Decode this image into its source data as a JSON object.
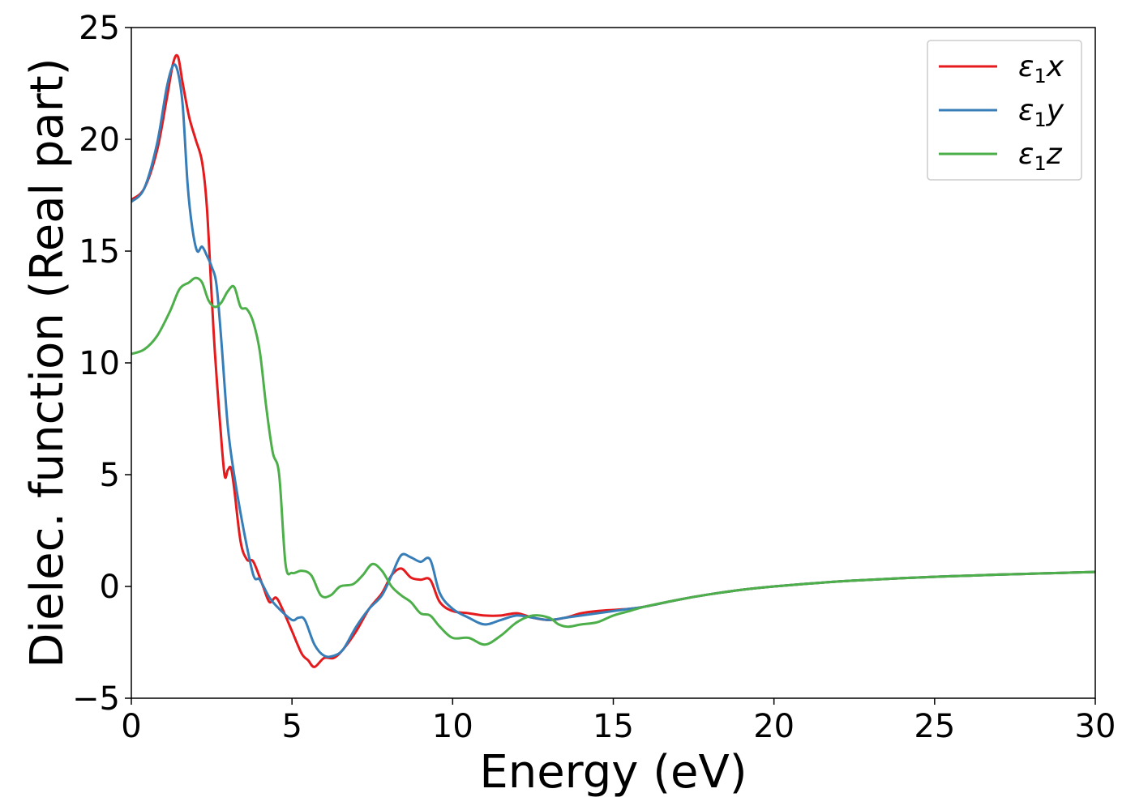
{
  "chart_data": {
    "type": "line",
    "xlabel": "Energy (eV)",
    "ylabel": "Dielec. function (Real part)",
    "xlim": [
      0,
      30
    ],
    "ylim": [
      -5,
      25
    ],
    "xticks": [
      0,
      5,
      10,
      15,
      20,
      25,
      30
    ],
    "yticks": [
      -5,
      0,
      5,
      10,
      15,
      20,
      25
    ],
    "grid": false,
    "legend_position": "top-right",
    "series": [
      {
        "name": "ε1x",
        "legend": {
          "main": "ε",
          "sub": "1",
          "tail": "x"
        },
        "color": "#e41a1c",
        "x": [
          0,
          0.4,
          0.8,
          1.1,
          1.3,
          1.45,
          1.6,
          1.8,
          2.0,
          2.2,
          2.35,
          2.5,
          2.6,
          2.75,
          2.9,
          3.0,
          3.1,
          3.2,
          3.4,
          3.6,
          3.8,
          4.1,
          4.3,
          4.5,
          4.7,
          5.0,
          5.3,
          5.5,
          5.7,
          6.0,
          6.3,
          6.6,
          7.0,
          7.4,
          7.8,
          8.1,
          8.4,
          8.7,
          9.0,
          9.3,
          9.6,
          10.0,
          10.5,
          11.0,
          11.5,
          12.0,
          12.5,
          13.0,
          13.5,
          14.0,
          14.5,
          15.0,
          15.5,
          16.0,
          17.0,
          18.0,
          19.0,
          20.0,
          21.0,
          22.0,
          23.0,
          24.0,
          25.0,
          26.0,
          27.0,
          28.0,
          29.0,
          30.0
        ],
        "y": [
          17.3,
          17.8,
          19.5,
          21.8,
          23.4,
          23.7,
          22.5,
          21.0,
          20.0,
          19.0,
          17.0,
          13.0,
          10.5,
          7.5,
          5.0,
          5.2,
          5.3,
          4.4,
          2.0,
          1.2,
          1.1,
          0.0,
          -0.7,
          -0.5,
          -1.0,
          -2.0,
          -3.0,
          -3.3,
          -3.6,
          -3.2,
          -3.2,
          -2.8,
          -2.0,
          -1.0,
          -0.3,
          0.5,
          0.8,
          0.4,
          0.3,
          0.3,
          -0.7,
          -1.1,
          -1.2,
          -1.3,
          -1.3,
          -1.2,
          -1.4,
          -1.5,
          -1.4,
          -1.2,
          -1.1,
          -1.05,
          -1.0,
          -0.9,
          -0.6,
          -0.35,
          -0.15,
          0.0,
          0.12,
          0.22,
          0.3,
          0.37,
          0.43,
          0.48,
          0.53,
          0.57,
          0.61,
          0.65
        ]
      },
      {
        "name": "ε1y",
        "legend": {
          "main": "ε",
          "sub": "1",
          "tail": "y"
        },
        "color": "#377eb8",
        "x": [
          0,
          0.4,
          0.8,
          1.1,
          1.3,
          1.45,
          1.6,
          1.75,
          1.9,
          2.05,
          2.2,
          2.35,
          2.5,
          2.65,
          2.8,
          3.0,
          3.2,
          3.5,
          3.8,
          4.0,
          4.3,
          4.6,
          5.0,
          5.2,
          5.4,
          5.7,
          6.0,
          6.3,
          6.6,
          7.0,
          7.4,
          7.8,
          8.1,
          8.4,
          8.7,
          9.0,
          9.3,
          9.6,
          10.0,
          10.5,
          11.0,
          11.5,
          12.0,
          12.5,
          13.0,
          13.5,
          14.0,
          14.5,
          15.0,
          15.5,
          16.0,
          17.0,
          18.0,
          19.0,
          20.0,
          21.0,
          22.0,
          23.0,
          24.0,
          25.0,
          26.0,
          27.0,
          28.0,
          29.0,
          30.0
        ],
        "y": [
          17.2,
          17.8,
          19.8,
          22.3,
          23.3,
          23.0,
          21.5,
          18.0,
          16.0,
          15.0,
          15.2,
          14.8,
          14.3,
          13.5,
          11.0,
          7.2,
          5.0,
          2.5,
          0.5,
          0.3,
          -0.5,
          -1.0,
          -1.5,
          -1.4,
          -1.5,
          -2.6,
          -3.1,
          -3.1,
          -2.8,
          -1.8,
          -1.0,
          -0.4,
          0.5,
          1.4,
          1.3,
          1.1,
          1.2,
          -0.3,
          -1.0,
          -1.4,
          -1.7,
          -1.5,
          -1.3,
          -1.4,
          -1.5,
          -1.4,
          -1.3,
          -1.2,
          -1.1,
          -1.0,
          -0.9,
          -0.6,
          -0.35,
          -0.15,
          0.0,
          0.12,
          0.22,
          0.3,
          0.37,
          0.43,
          0.48,
          0.53,
          0.57,
          0.61,
          0.65
        ]
      },
      {
        "name": "ε1z",
        "legend": {
          "main": "ε",
          "sub": "1",
          "tail": "z"
        },
        "color": "#4daf4a",
        "x": [
          0,
          0.4,
          0.8,
          1.2,
          1.5,
          1.8,
          2.0,
          2.2,
          2.4,
          2.6,
          2.8,
          3.0,
          3.2,
          3.4,
          3.6,
          3.8,
          4.0,
          4.2,
          4.4,
          4.6,
          4.8,
          5.0,
          5.3,
          5.6,
          5.9,
          6.2,
          6.5,
          6.9,
          7.2,
          7.5,
          7.8,
          8.1,
          8.4,
          8.7,
          9.0,
          9.3,
          9.6,
          10.0,
          10.5,
          11.0,
          11.5,
          12.0,
          12.5,
          13.0,
          13.3,
          13.6,
          14.0,
          14.5,
          15.0,
          15.5,
          16.0,
          17.0,
          18.0,
          19.0,
          20.0,
          21.0,
          22.0,
          23.0,
          24.0,
          25.0,
          26.0,
          27.0,
          28.0,
          29.0,
          30.0
        ],
        "y": [
          10.4,
          10.6,
          11.2,
          12.3,
          13.3,
          13.6,
          13.8,
          13.6,
          12.8,
          12.5,
          12.7,
          13.2,
          13.4,
          12.5,
          12.4,
          11.8,
          10.5,
          8.0,
          6.0,
          5.0,
          1.0,
          0.6,
          0.7,
          0.5,
          -0.4,
          -0.4,
          0.0,
          0.1,
          0.5,
          1.0,
          0.7,
          0.0,
          -0.4,
          -0.7,
          -1.2,
          -1.3,
          -1.8,
          -2.3,
          -2.3,
          -2.6,
          -2.2,
          -1.6,
          -1.3,
          -1.4,
          -1.7,
          -1.8,
          -1.7,
          -1.6,
          -1.3,
          -1.1,
          -0.9,
          -0.6,
          -0.35,
          -0.15,
          0.0,
          0.12,
          0.22,
          0.3,
          0.37,
          0.43,
          0.48,
          0.53,
          0.57,
          0.61,
          0.65
        ]
      }
    ]
  }
}
